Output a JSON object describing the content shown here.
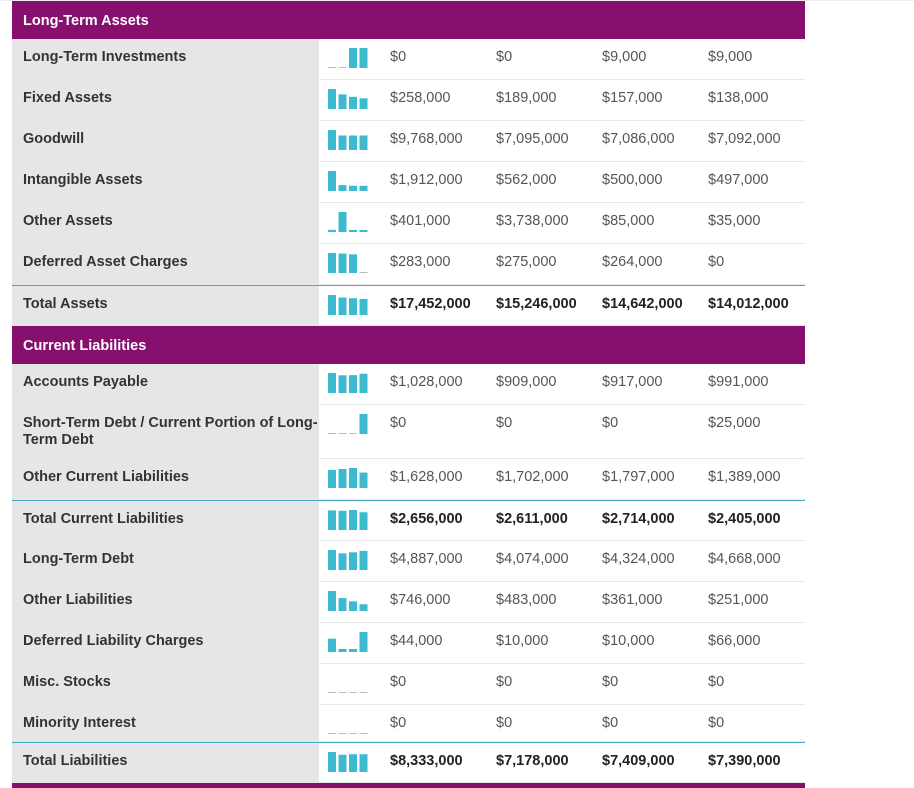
{
  "sections": [
    {
      "title": "Long-Term Assets",
      "rows": [
        {
          "label": "Long-Term Investments",
          "values": [
            "$0",
            "$0",
            "$9,000",
            "$9,000"
          ],
          "nums": [
            0,
            0,
            9000,
            9000
          ]
        },
        {
          "label": "Fixed Assets",
          "values": [
            "$258,000",
            "$189,000",
            "$157,000",
            "$138,000"
          ],
          "nums": [
            258000,
            189000,
            157000,
            138000
          ]
        },
        {
          "label": "Goodwill",
          "values": [
            "$9,768,000",
            "$7,095,000",
            "$7,086,000",
            "$7,092,000"
          ],
          "nums": [
            9768000,
            7095000,
            7086000,
            7092000
          ]
        },
        {
          "label": "Intangible Assets",
          "values": [
            "$1,912,000",
            "$562,000",
            "$500,000",
            "$497,000"
          ],
          "nums": [
            1912000,
            562000,
            500000,
            497000
          ]
        },
        {
          "label": "Other Assets",
          "values": [
            "$401,000",
            "$3,738,000",
            "$85,000",
            "$35,000"
          ],
          "nums": [
            401000,
            3738000,
            85000,
            35000
          ]
        },
        {
          "label": "Deferred Asset Charges",
          "values": [
            "$283,000",
            "$275,000",
            "$264,000",
            "$0"
          ],
          "nums": [
            283000,
            275000,
            264000,
            0
          ]
        },
        {
          "label": "Total Assets",
          "values": [
            "$17,452,000",
            "$15,246,000",
            "$14,642,000",
            "$14,012,000"
          ],
          "nums": [
            17452000,
            15246000,
            14642000,
            14012000
          ],
          "total": true
        }
      ]
    },
    {
      "title": "Current Liabilities",
      "rows": [
        {
          "label": "Accounts Payable",
          "values": [
            "$1,028,000",
            "$909,000",
            "$917,000",
            "$991,000"
          ],
          "nums": [
            1028000,
            909000,
            917000,
            991000
          ]
        },
        {
          "label": "Short-Term Debt / Current Portion of Long-Term Debt",
          "values": [
            "$0",
            "$0",
            "$0",
            "$25,000"
          ],
          "nums": [
            0,
            0,
            0,
            25000
          ],
          "tall": true
        },
        {
          "label": "Other Current Liabilities",
          "values": [
            "$1,628,000",
            "$1,702,000",
            "$1,797,000",
            "$1,389,000"
          ],
          "nums": [
            1628000,
            1702000,
            1797000,
            1389000
          ]
        },
        {
          "label": "Total Current Liabilities",
          "values": [
            "$2,656,000",
            "$2,611,000",
            "$2,714,000",
            "$2,405,000"
          ],
          "nums": [
            2656000,
            2611000,
            2714000,
            2405000
          ],
          "total": true
        },
        {
          "label": "Long-Term Debt",
          "values": [
            "$4,887,000",
            "$4,074,000",
            "$4,324,000",
            "$4,668,000"
          ],
          "nums": [
            4887000,
            4074000,
            4324000,
            4668000
          ]
        },
        {
          "label": "Other Liabilities",
          "values": [
            "$746,000",
            "$483,000",
            "$361,000",
            "$251,000"
          ],
          "nums": [
            746000,
            483000,
            361000,
            251000
          ]
        },
        {
          "label": "Deferred Liability Charges",
          "values": [
            "$44,000",
            "$10,000",
            "$10,000",
            "$66,000"
          ],
          "nums": [
            44000,
            10000,
            10000,
            66000
          ]
        },
        {
          "label": "Misc. Stocks",
          "values": [
            "$0",
            "$0",
            "$0",
            "$0"
          ],
          "nums": [
            0,
            0,
            0,
            0
          ]
        },
        {
          "label": "Minority Interest",
          "values": [
            "$0",
            "$0",
            "$0",
            "$0"
          ],
          "nums": [
            0,
            0,
            0,
            0
          ],
          "short": true
        },
        {
          "label": "Total Liabilities",
          "values": [
            "$8,333,000",
            "$7,178,000",
            "$7,409,000",
            "$7,390,000"
          ],
          "nums": [
            8333000,
            7178000,
            7409000,
            7390000
          ],
          "total": true
        }
      ]
    }
  ],
  "colors": {
    "header": "#870f6e",
    "bar": "#3bbad0",
    "label_bg": "#e6e6e6",
    "total_rule": "#4aa8c8"
  }
}
